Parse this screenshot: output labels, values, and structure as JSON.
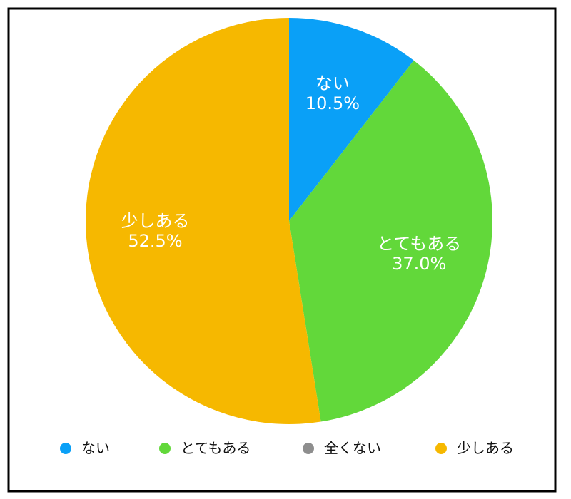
{
  "chart_data": {
    "type": "pie",
    "categories": [
      "ない",
      "とてもある",
      "全くない",
      "少しある"
    ],
    "values": [
      10.5,
      37,
      0,
      52.5
    ],
    "value_labels": [
      "10.5%",
      "37.0%",
      null,
      "52.5%"
    ],
    "colors": [
      "#0aa0f7",
      "#62d83a",
      "#8e8e8e",
      "#f6b800"
    ],
    "legend": "bottom"
  }
}
